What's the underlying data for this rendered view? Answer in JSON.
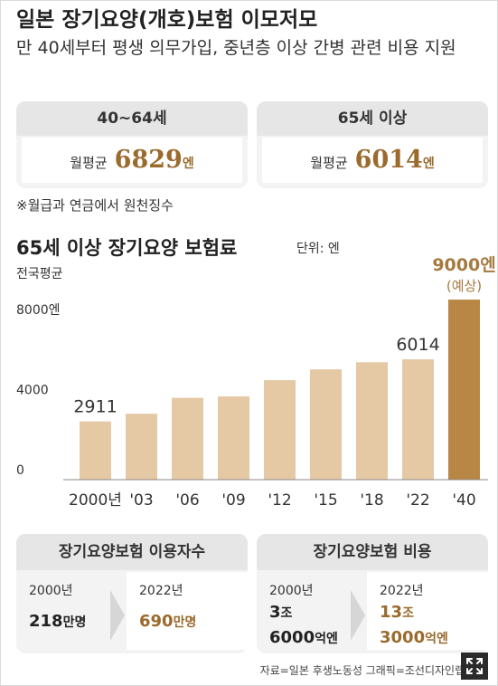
{
  "title": "일본 장기요양(개호)보험 이모저모",
  "subtitle": "만 40세부터 평생 의무가입, 중년층 이상 간병 관련 비용 지원",
  "premium_cards": [
    {
      "header": "40~64세",
      "label": "월평균",
      "value": "6829",
      "unit": "엔"
    },
    {
      "header": "65세 이상",
      "label": "월평균",
      "value": "6014",
      "unit": "엔"
    }
  ],
  "note": "※월급과 연금에서 원천징수",
  "chart_title": "65세 이상 장기요양 보험료",
  "chart_unit": "단위: 엔",
  "chart_avg_label": "전국평균",
  "chart_data": {
    "type": "bar",
    "title": "65세 이상 장기요양 보험료",
    "categories": [
      "2000년",
      "'03",
      "'06",
      "'09",
      "'12",
      "'15",
      "'18",
      "'22",
      "'40"
    ],
    "values": [
      2911,
      3293,
      4090,
      4160,
      4972,
      5514,
      5869,
      6014,
      9000
    ],
    "ylim": [
      0,
      9500
    ],
    "yticks": [
      0,
      4000,
      8000
    ],
    "ytick_labels": [
      "0",
      "4000",
      "8000엔"
    ],
    "data_labels": [
      {
        "index": 0,
        "text": "2911"
      },
      {
        "index": 7,
        "text": "6014"
      },
      {
        "index": 8,
        "text": "9000엔"
      }
    ],
    "forecast_label": "(예상)",
    "colors": {
      "bar": "#e5c8a4",
      "forecast_bar": "#b88745",
      "forecast_text": "#a67a3f",
      "axis": "#888888"
    }
  },
  "users_card": {
    "header": "장기요양보험 이용자수",
    "left": {
      "year": "2000년",
      "value": "218",
      "unit": "만명"
    },
    "right": {
      "year": "2022년",
      "value": "690",
      "unit": "만명"
    }
  },
  "cost_card": {
    "header": "장기요양보험 비용",
    "left": {
      "year": "2000년",
      "line1_value": "3",
      "line1_unit": "조",
      "line2_value": "6000",
      "line2_unit": "억엔"
    },
    "right": {
      "year": "2022년",
      "line1_value": "13",
      "line1_unit": "조",
      "line2_value": "3000",
      "line2_unit": "억엔"
    }
  },
  "source": "자료=일본 후생노동성   그래픽=조선디자인랩 이",
  "icons": {
    "expand": "expand-icon"
  },
  "colors": {
    "accent": "#9b6a2d",
    "card_bg": "#f3f3f3",
    "card_head": "#e6e6e6"
  }
}
